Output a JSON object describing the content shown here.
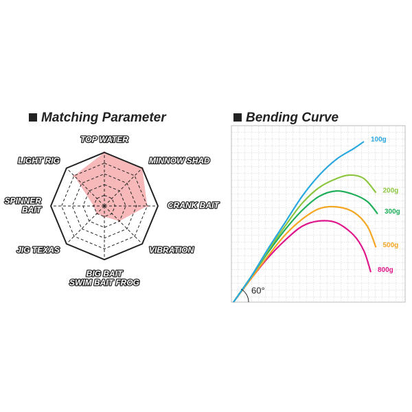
{
  "chart_data": [
    {
      "type": "radar",
      "title": "Matching Parameter",
      "categories": [
        "TOP WATER",
        "MINNOW SHAD",
        "CRANK BAIT",
        "VIBRATION",
        "BIG BAIT\nSWIM BAIT FROG",
        "JIG TEXAS",
        "SPINNER\nBAIT",
        "LIGHT RIG"
      ],
      "values": [
        5,
        5,
        4,
        2,
        1,
        1,
        1,
        4
      ],
      "color": "#f4a6a6",
      "rlim": [
        0,
        5
      ],
      "rticks": [
        1,
        2,
        3,
        4,
        5
      ]
    },
    {
      "type": "line",
      "title": "Bending Curve",
      "annotation": "60°",
      "xlim": [
        0,
        100
      ],
      "ylim": [
        0,
        100
      ],
      "grid": true,
      "series": [
        {
          "name": "100g",
          "color": "#29a8e0",
          "x": [
            0,
            10,
            20,
            30,
            40,
            50,
            60,
            70,
            76
          ],
          "values": [
            0,
            14,
            30,
            45,
            60,
            72,
            81,
            87,
            91
          ]
        },
        {
          "name": "200g",
          "color": "#8cc63f",
          "x": [
            0,
            10,
            20,
            30,
            40,
            50,
            60,
            68,
            76,
            83
          ],
          "values": [
            0,
            14,
            29,
            43,
            56,
            65,
            70,
            72,
            70,
            62
          ]
        },
        {
          "name": "300g",
          "color": "#1fae5a",
          "x": [
            0,
            10,
            20,
            30,
            40,
            50,
            60,
            70,
            78,
            84
          ],
          "values": [
            0,
            14,
            28,
            41,
            52,
            60,
            63,
            61,
            57,
            50
          ]
        },
        {
          "name": "500g",
          "color": "#f5a623",
          "x": [
            0,
            10,
            20,
            30,
            40,
            50,
            60,
            70,
            78,
            83
          ],
          "values": [
            0,
            13,
            26,
            38,
            47,
            53,
            54,
            51,
            43,
            31
          ]
        },
        {
          "name": "800g",
          "color": "#e0168c",
          "x": [
            0,
            10,
            20,
            30,
            40,
            50,
            60,
            70,
            76,
            80
          ],
          "values": [
            0,
            13,
            25,
            35,
            43,
            46,
            45,
            38,
            29,
            17
          ]
        }
      ]
    }
  ]
}
